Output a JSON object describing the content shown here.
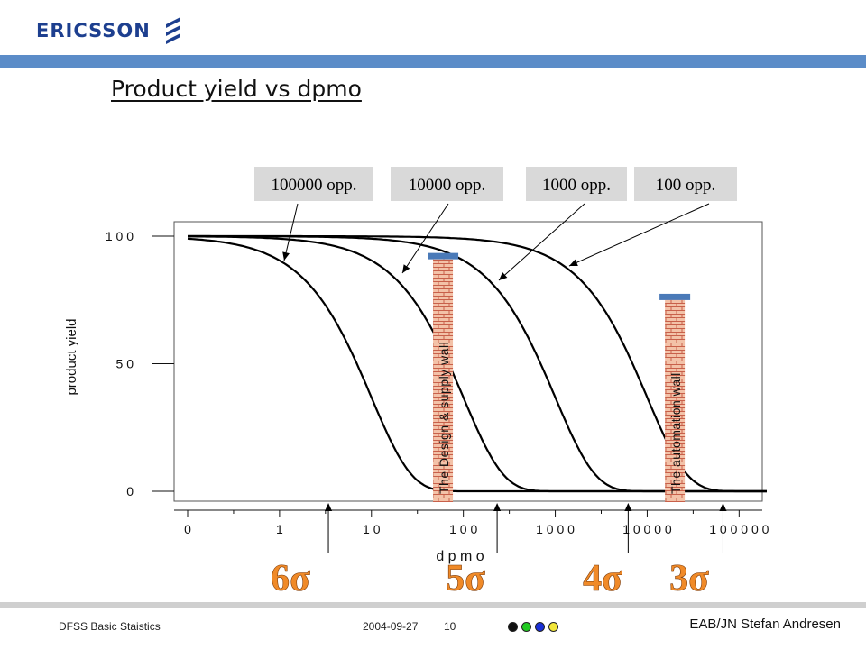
{
  "header": {
    "logo_text": "ERICSSON",
    "title": "Product yield vs dpmo"
  },
  "footer": {
    "left": "DFSS Basic Staistics",
    "date": "2004-09-27",
    "page": "10",
    "author": "EAB/JN Stefan Andresen",
    "dot_colors": [
      "#111111",
      "#22cc22",
      "#1a2fd6",
      "#f2e63a"
    ]
  },
  "chart_data": {
    "type": "line",
    "xscale": "log",
    "xlabel": "d p m o",
    "ylabel": "product yield",
    "ylim": [
      0,
      100
    ],
    "xlim": [
      0.1,
      200000
    ],
    "xticks": [
      {
        "value": 0.1,
        "label": "0"
      },
      {
        "value": 1,
        "label": "1"
      },
      {
        "value": 10,
        "label": "1 0"
      },
      {
        "value": 100,
        "label": "1 0 0"
      },
      {
        "value": 1000,
        "label": "1 0 0 0"
      },
      {
        "value": 10000,
        "label": "1 0 0 0 0"
      },
      {
        "value": 100000,
        "label": "1 0 0 0 0 0"
      }
    ],
    "yticks": [
      {
        "value": 100,
        "label": "1 0 0"
      },
      {
        "value": 50,
        "label": "5 0"
      },
      {
        "value": 0,
        "label": "0"
      }
    ],
    "series": [
      {
        "name": "100000 opp.",
        "opportunities": 100000
      },
      {
        "name": "10000 opp.",
        "opportunities": 10000
      },
      {
        "name": "1000 opp.",
        "opportunities": 1000
      },
      {
        "name": "100 opp.",
        "opportunities": 100
      }
    ],
    "walls": [
      {
        "label": "The Design & supply wall",
        "x": 60,
        "top_y": 92
      },
      {
        "label": "The automation wall",
        "x": 20000,
        "top_y": 76
      }
    ],
    "sigma_markers": [
      {
        "label": "6σ",
        "x": 3.4
      },
      {
        "label": "5σ",
        "x": 233
      },
      {
        "label": "4σ",
        "x": 6210
      },
      {
        "label": "3σ",
        "x": 66800
      }
    ]
  }
}
